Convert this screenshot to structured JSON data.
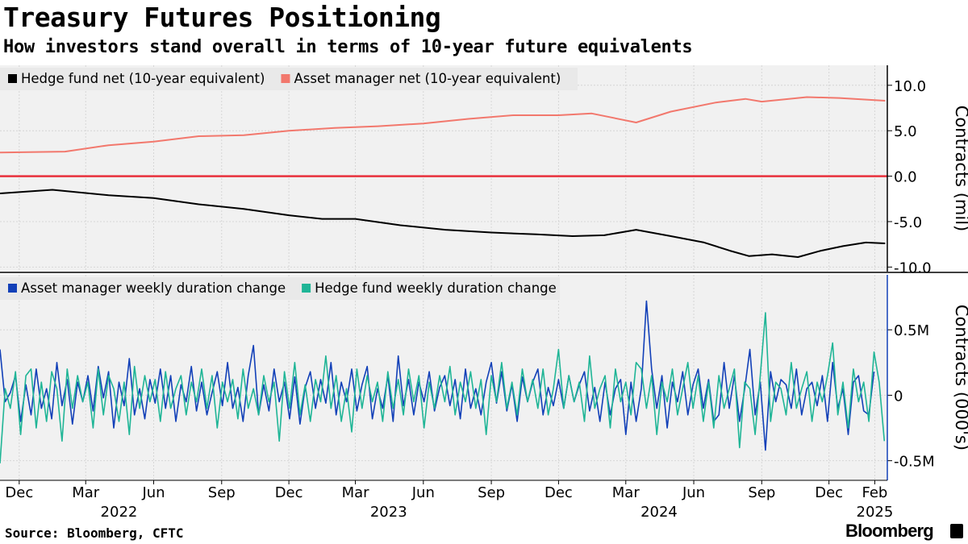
{
  "header": {
    "title": "Treasury Futures Positioning",
    "subtitle": "How investors stand overall in terms of 10-year future equivalents"
  },
  "footer": {
    "source": "Source: Bloomberg, CFTC",
    "brand": "Bloomberg"
  },
  "colors": {
    "hedge_fund_net": "#000000",
    "asset_manager_net": "#f2786d",
    "zero_line": "#e8313c",
    "asset_manager_weekly": "#1240b8",
    "hedge_fund_weekly": "#1fb596"
  },
  "x_axis": {
    "months": [
      {
        "label": "Dec",
        "date": "2021-12-01"
      },
      {
        "label": "Mar",
        "date": "2022-03-01"
      },
      {
        "label": "Jun",
        "date": "2022-06-01"
      },
      {
        "label": "Sep",
        "date": "2022-09-01"
      },
      {
        "label": "Dec",
        "date": "2022-12-01"
      },
      {
        "label": "Mar",
        "date": "2023-03-01"
      },
      {
        "label": "Jun",
        "date": "2023-06-01"
      },
      {
        "label": "Sep",
        "date": "2023-09-01"
      },
      {
        "label": "Dec",
        "date": "2023-12-01"
      },
      {
        "label": "Mar",
        "date": "2024-03-01"
      },
      {
        "label": "Jun",
        "date": "2024-06-01"
      },
      {
        "label": "Sep",
        "date": "2024-09-01"
      },
      {
        "label": "Dec",
        "date": "2024-12-01"
      },
      {
        "label": "Feb",
        "date": "2025-02-01"
      }
    ],
    "years": [
      {
        "label": "2022",
        "date": "2022-04-15"
      },
      {
        "label": "2023",
        "date": "2023-04-15"
      },
      {
        "label": "2024",
        "date": "2024-04-15"
      },
      {
        "label": "2025",
        "date": "2025-02-01"
      }
    ],
    "range": [
      "2021-11-05",
      "2025-02-18"
    ]
  },
  "chart_data": [
    {
      "type": "line",
      "ylabel": "Contracts (mil)",
      "ylim": [
        -10.5,
        12.2
      ],
      "yticks": [
        {
          "v": 10,
          "label": "10.0"
        },
        {
          "v": 5,
          "label": "5.0"
        },
        {
          "v": 0,
          "label": "0.0"
        },
        {
          "v": -5,
          "label": "-5.0"
        },
        {
          "v": -10,
          "label": "-10.0"
        }
      ],
      "grid": true,
      "legend": "top-left",
      "reference_line": 0,
      "series": [
        {
          "name": "Hedge fund net (10-year equivalent)",
          "color_key": "hedge_fund_net",
          "points": [
            [
              "2021-11-05",
              -1.9
            ],
            [
              "2022-01-15",
              -1.5
            ],
            [
              "2022-04-01",
              -2.1
            ],
            [
              "2022-06-01",
              -2.4
            ],
            [
              "2022-08-01",
              -3.1
            ],
            [
              "2022-10-01",
              -3.6
            ],
            [
              "2022-12-01",
              -4.3
            ],
            [
              "2023-01-15",
              -4.7
            ],
            [
              "2023-03-01",
              -4.7
            ],
            [
              "2023-05-01",
              -5.4
            ],
            [
              "2023-07-01",
              -5.9
            ],
            [
              "2023-09-01",
              -6.2
            ],
            [
              "2023-11-01",
              -6.4
            ],
            [
              "2023-12-20",
              -6.6
            ],
            [
              "2024-02-01",
              -6.5
            ],
            [
              "2024-03-15",
              -5.9
            ],
            [
              "2024-05-01",
              -6.6
            ],
            [
              "2024-06-15",
              -7.3
            ],
            [
              "2024-07-20",
              -8.2
            ],
            [
              "2024-08-15",
              -8.8
            ],
            [
              "2024-09-15",
              -8.6
            ],
            [
              "2024-10-20",
              -8.9
            ],
            [
              "2024-11-20",
              -8.2
            ],
            [
              "2024-12-20",
              -7.7
            ],
            [
              "2025-01-20",
              -7.3
            ],
            [
              "2025-02-15",
              -7.4
            ]
          ]
        },
        {
          "name": "Asset manager net (10-year equivalent)",
          "color_key": "asset_manager_net",
          "points": [
            [
              "2021-11-05",
              2.6
            ],
            [
              "2022-02-01",
              2.7
            ],
            [
              "2022-04-01",
              3.4
            ],
            [
              "2022-06-01",
              3.8
            ],
            [
              "2022-08-01",
              4.4
            ],
            [
              "2022-10-01",
              4.5
            ],
            [
              "2022-12-01",
              5.0
            ],
            [
              "2023-02-01",
              5.3
            ],
            [
              "2023-04-01",
              5.5
            ],
            [
              "2023-06-01",
              5.8
            ],
            [
              "2023-08-01",
              6.3
            ],
            [
              "2023-10-01",
              6.7
            ],
            [
              "2023-12-01",
              6.7
            ],
            [
              "2024-01-15",
              6.9
            ],
            [
              "2024-03-15",
              5.9
            ],
            [
              "2024-05-01",
              7.1
            ],
            [
              "2024-07-01",
              8.1
            ],
            [
              "2024-08-10",
              8.5
            ],
            [
              "2024-09-01",
              8.2
            ],
            [
              "2024-11-01",
              8.7
            ],
            [
              "2024-12-15",
              8.6
            ],
            [
              "2025-02-15",
              8.3
            ]
          ]
        }
      ]
    },
    {
      "type": "line",
      "ylabel": "Contracts (000's)",
      "ylim": [
        -0.65,
        0.92
      ],
      "yticks": [
        {
          "v": 0.5,
          "label": "0.5M"
        },
        {
          "v": 0,
          "label": "0"
        },
        {
          "v": -0.5,
          "label": "-0.5M"
        }
      ],
      "grid": true,
      "legend": "top-left",
      "series": [
        {
          "name": "Asset manager weekly duration change",
          "color_key": "asset_manager_weekly",
          "start": "2021-11-05",
          "step_days": 7,
          "values": [
            0.35,
            -0.05,
            0.02,
            0.15,
            -0.2,
            0.08,
            -0.15,
            0.2,
            -0.1,
            0.05,
            -0.18,
            0.25,
            -0.08,
            0.12,
            -0.22,
            0.1,
            -0.05,
            0.15,
            -0.12,
            0.22,
            -0.02,
            0.18,
            -0.25,
            0.1,
            -0.08,
            0.28,
            -0.15,
            0.05,
            -0.18,
            0.12,
            -0.06,
            0.2,
            -0.1,
            0.15,
            -0.2,
            0.08,
            -0.05,
            0.22,
            -0.12,
            0.1,
            -0.15,
            0.02,
            0.18,
            -0.08,
            0.25,
            -0.1,
            0.06,
            -0.2,
            0.15,
            0.38,
            -0.15,
            0.08,
            -0.12,
            0.2,
            -0.05,
            0.1,
            -0.18,
            0.14,
            -0.22,
            0.06,
            0.18,
            -0.1,
            0.12,
            -0.06,
            0.25,
            -0.15,
            0.1,
            -0.05,
            0.2,
            -0.12,
            0.08,
            0.22,
            -0.18,
            0.05,
            -0.1,
            0.15,
            -0.2,
            0.3,
            -0.08,
            0.12,
            -0.15,
            0.1,
            -0.05,
            0.18,
            -0.12,
            0.06,
            0.15,
            -0.08,
            0.12,
            -0.18,
            0.2,
            -0.1,
            0.05,
            -0.15,
            0.1,
            0.25,
            -0.06,
            0.18,
            -0.12,
            0.08,
            -0.2,
            0.14,
            -0.05,
            0.1,
            0.2,
            -0.15,
            0.06,
            -0.08,
            0.12,
            -0.1,
            0.15,
            -0.05,
            0.08,
            0.18,
            -0.12,
            0.06,
            -0.2,
            0.1,
            -0.15,
            0.05,
            0.12,
            -0.3,
            0.1,
            -0.2,
            0.05,
            0.72,
            0.2,
            -0.1,
            0.15,
            -0.25,
            0.1,
            -0.05,
            0.18,
            -0.15,
            0.08,
            0.2,
            -0.1,
            0.12,
            -0.2,
            -0.15,
            0.25,
            -0.1,
            0.15,
            -0.2,
            0.05,
            0.35,
            -0.15,
            0.1,
            -0.42,
            0.18,
            -0.05,
            0.12,
            0.08,
            -0.1,
            0.2,
            -0.15,
            0.05,
            0.1,
            -0.08,
            0.15,
            -0.2,
            0.25,
            -0.1,
            0.05,
            -0.3,
            0.1,
            0.15,
            -0.12,
            -0.15,
            0.18
          ]
        },
        {
          "name": "Hedge fund weekly duration change",
          "color_key": "hedge_fund_weekly",
          "start": "2021-11-05",
          "step_days": 7,
          "values": [
            -0.52,
            0.05,
            -0.1,
            0.18,
            -0.3,
            0.15,
            0.2,
            -0.25,
            0.1,
            -0.2,
            0.18,
            0.05,
            -0.35,
            0.2,
            -0.1,
            0.15,
            -0.05,
            0.1,
            -0.25,
            0.2,
            -0.15,
            0.15,
            0.05,
            -0.2,
            0.1,
            -0.3,
            0.22,
            -0.1,
            0.15,
            -0.05,
            0.12,
            -0.2,
            0.18,
            -0.1,
            0.05,
            0.15,
            -0.15,
            0.1,
            -0.05,
            0.2,
            -0.1,
            0.15,
            -0.25,
            0.1,
            -0.05,
            0.12,
            -0.18,
            0.2,
            -0.1,
            0.05,
            -0.15,
            0.15,
            -0.05,
            0.1,
            -0.35,
            0.18,
            -0.1,
            0.25,
            -0.15,
            0.08,
            -0.2,
            0.12,
            -0.05,
            0.3,
            -0.1,
            0.15,
            -0.2,
            0.05,
            -0.28,
            0.2,
            -0.1,
            0.15,
            -0.05,
            0.1,
            -0.2,
            0.18,
            -0.1,
            0.12,
            -0.15,
            0.2,
            -0.05,
            0.15,
            -0.25,
            0.1,
            -0.1,
            0.15,
            -0.05,
            0.22,
            -0.15,
            0.1,
            -0.05,
            0.18,
            -0.1,
            0.12,
            -0.3,
            0.15,
            -0.05,
            0.25,
            -0.1,
            0.1,
            -0.15,
            0.2,
            -0.05,
            0.12,
            -0.1,
            0.2,
            -0.15,
            0.05,
            0.35,
            -0.1,
            0.15,
            -0.05,
            0.1,
            -0.2,
            0.3,
            -0.1,
            0.05,
            0.15,
            -0.25,
            0.2,
            -0.05,
            0.1,
            -0.15,
            0.25,
            0.2,
            -0.1,
            0.15,
            -0.3,
            0.1,
            -0.05,
            0.2,
            -0.15,
            0.05,
            0.25,
            -0.1,
            0.15,
            -0.2,
            0.1,
            -0.25,
            0.15,
            -0.1,
            0.05,
            0.2,
            -0.4,
            0.1,
            0.05,
            -0.3,
            0.15,
            0.63,
            -0.2,
            0.1,
            0.05,
            -0.15,
            0.25,
            -0.1,
            0.05,
            0.18,
            -0.2,
            0.1,
            -0.05,
            0.15,
            0.4,
            -0.15,
            0.1,
            -0.25,
            0.2,
            -0.05,
            0.1,
            -0.2,
            0.33,
            0.1,
            -0.35
          ]
        }
      ]
    }
  ]
}
